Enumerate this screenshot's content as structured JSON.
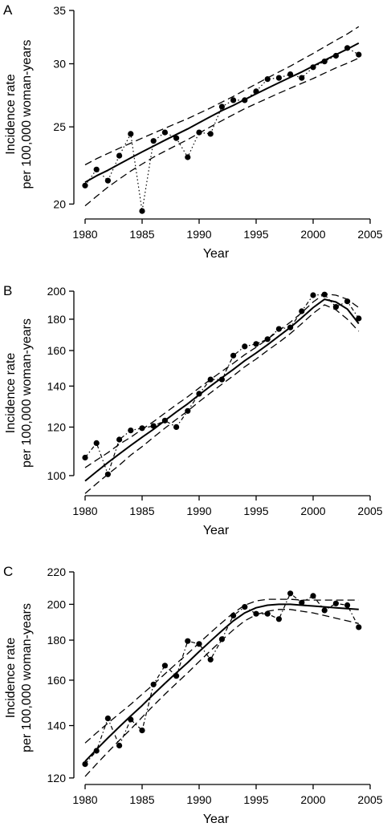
{
  "chart_data": [
    {
      "type": "line",
      "panel_label": "A",
      "xlabel": "Year",
      "ylabel_line1": "Incidence rate",
      "ylabel_line2": "per 100,000 woman-years",
      "log_scale_y": true,
      "xlim": [
        1979.5,
        2005
      ],
      "ylim": [
        19.2,
        35
      ],
      "xticks": [
        1980,
        1985,
        1990,
        1995,
        2000,
        2005
      ],
      "yticks": [
        20,
        25,
        30,
        35
      ],
      "x": [
        1980,
        1981,
        1982,
        1983,
        1984,
        1985,
        1986,
        1987,
        1988,
        1989,
        1990,
        1991,
        1992,
        1993,
        1994,
        1995,
        1996,
        1997,
        1998,
        1999,
        2000,
        2001,
        2002,
        2003,
        2004
      ],
      "series": [
        {
          "role": "observed",
          "style": "points-dotted",
          "values": [
            21.1,
            22.1,
            21.4,
            23.0,
            24.5,
            19.6,
            24.0,
            24.6,
            24.2,
            22.9,
            24.6,
            24.5,
            26.5,
            27.0,
            27.0,
            27.7,
            28.7,
            28.8,
            29.1,
            28.8,
            29.7,
            30.2,
            30.7,
            31.4,
            30.8
          ]
        },
        {
          "role": "fitted",
          "style": "solid",
          "values": [
            21.3,
            21.7,
            22.05,
            22.45,
            22.85,
            23.25,
            23.65,
            24.05,
            24.45,
            24.85,
            25.3,
            25.75,
            26.2,
            26.6,
            27.05,
            27.5,
            27.95,
            28.4,
            28.85,
            29.3,
            29.8,
            30.3,
            30.8,
            31.3,
            31.85
          ]
        },
        {
          "role": "upper-ci",
          "style": "dashed",
          "values": [
            22.4,
            22.8,
            23.15,
            23.5,
            23.85,
            24.2,
            24.55,
            24.9,
            25.25,
            25.6,
            26.0,
            26.4,
            26.85,
            27.3,
            27.8,
            28.3,
            28.8,
            29.3,
            29.8,
            30.35,
            30.9,
            31.5,
            32.1,
            32.7,
            33.4
          ]
        },
        {
          "role": "lower-ci",
          "style": "dashed",
          "values": [
            19.9,
            20.45,
            21.0,
            21.5,
            22.0,
            22.45,
            22.9,
            23.3,
            23.7,
            24.1,
            24.55,
            25.0,
            25.45,
            25.9,
            26.35,
            26.75,
            27.15,
            27.55,
            27.95,
            28.35,
            28.75,
            29.2,
            29.65,
            30.05,
            30.5
          ]
        }
      ]
    },
    {
      "type": "line",
      "panel_label": "B",
      "xlabel": "Year",
      "ylabel_line1": "Incidence rate",
      "ylabel_line2": "per 100,000 woman-years",
      "log_scale_y": true,
      "xlim": [
        1979.5,
        2005
      ],
      "ylim": [
        93,
        200
      ],
      "xticks": [
        1980,
        1985,
        1990,
        1995,
        2000,
        2005
      ],
      "yticks": [
        100,
        120,
        140,
        160,
        180,
        200
      ],
      "x": [
        1980,
        1981,
        1982,
        1983,
        1984,
        1985,
        1986,
        1987,
        1988,
        1989,
        1990,
        1991,
        1992,
        1993,
        1994,
        1995,
        1996,
        1997,
        1998,
        1999,
        2000,
        2001,
        2002,
        2003,
        2004
      ],
      "series": [
        {
          "role": "observed",
          "style": "points-dashdot",
          "values": [
            107,
            113,
            100.5,
            114.5,
            118.5,
            119.5,
            120.5,
            123,
            120,
            127.5,
            136,
            143.5,
            143.5,
            157,
            162.5,
            164,
            167,
            173.5,
            174.5,
            185.5,
            197,
            197.5,
            188.5,
            192.5,
            180.5
          ]
        },
        {
          "role": "fitted",
          "style": "solid",
          "values": [
            98,
            101.5,
            105,
            108.5,
            112,
            115.5,
            119,
            123,
            127,
            131,
            135.5,
            140,
            144.5,
            149,
            154,
            158.5,
            163.5,
            169,
            174.5,
            181,
            188,
            194,
            192,
            187,
            177
          ]
        },
        {
          "role": "upper-ci",
          "style": "dashed",
          "values": [
            103,
            106,
            109,
            112.5,
            115.5,
            119,
            122.5,
            126.5,
            130.5,
            134.5,
            139,
            143.5,
            148,
            152.5,
            157.5,
            162,
            167,
            172.5,
            178,
            184.5,
            192,
            198,
            197,
            194,
            188
          ]
        },
        {
          "role": "lower-ci",
          "style": "dashed",
          "values": [
            93.5,
            97,
            100.5,
            104,
            108,
            111.5,
            115.5,
            119.5,
            123.5,
            127.5,
            132,
            136.5,
            141,
            145.5,
            150.5,
            155,
            160,
            165,
            170.5,
            177,
            184,
            190,
            186.5,
            180,
            172
          ]
        }
      ]
    },
    {
      "type": "line",
      "panel_label": "C",
      "xlabel": "Year",
      "ylabel_line1": "Incidence rate",
      "ylabel_line2": "per 100,000 woman-years",
      "log_scale_y": true,
      "xlim": [
        1979.5,
        2005
      ],
      "ylim": [
        118,
        220
      ],
      "xticks": [
        1980,
        1985,
        1990,
        1995,
        2000,
        2005
      ],
      "yticks": [
        120,
        140,
        160,
        180,
        200,
        220
      ],
      "x": [
        1980,
        1981,
        1982,
        1983,
        1984,
        1985,
        1986,
        1987,
        1988,
        1989,
        1990,
        1991,
        1992,
        1993,
        1994,
        1995,
        1996,
        1997,
        1998,
        1999,
        2000,
        2001,
        2002,
        2003,
        2004
      ],
      "series": [
        {
          "role": "observed",
          "style": "points-dashdot",
          "values": [
            125,
            130,
            143,
            132,
            142.5,
            138,
            158,
            167,
            162,
            179.5,
            178,
            170,
            180.5,
            193.5,
            198.5,
            194.5,
            194.5,
            191.5,
            206.5,
            201,
            205,
            196.5,
            200.5,
            199.5,
            187
          ]
        },
        {
          "role": "fitted",
          "style": "solid",
          "values": [
            126,
            130.5,
            135,
            139.5,
            144,
            148.5,
            153.5,
            158.5,
            163.5,
            168.5,
            174,
            179.5,
            185,
            190.5,
            195,
            198,
            199.5,
            200,
            200,
            199.5,
            199,
            198.5,
            198,
            197.5,
            197
          ]
        },
        {
          "role": "upper-ci",
          "style": "dashed",
          "values": [
            133,
            137,
            141,
            145,
            149,
            153.5,
            158,
            163,
            168,
            173,
            178.5,
            184,
            189.5,
            195,
            199.5,
            202,
            203,
            203,
            203,
            202.5,
            202.5,
            202.5,
            202.5,
            202.5,
            202.5
          ]
        },
        {
          "role": "lower-ci",
          "style": "dashed",
          "values": [
            120.5,
            125,
            129.5,
            134,
            138.5,
            143.5,
            148.5,
            153.5,
            158.5,
            163.5,
            169,
            174.5,
            180,
            185.5,
            190.5,
            194,
            196,
            197,
            197,
            196,
            195,
            193.5,
            192,
            190.5,
            189
          ]
        }
      ]
    }
  ]
}
